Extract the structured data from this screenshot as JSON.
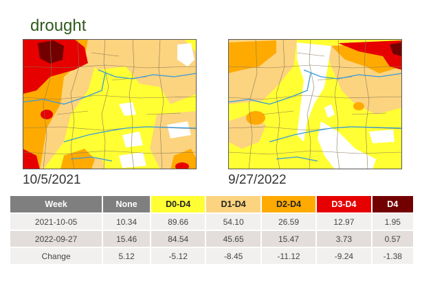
{
  "title": "drought",
  "maps": [
    {
      "date": "10/5/2021"
    },
    {
      "date": "9/27/2022"
    }
  ],
  "table": {
    "headers": [
      "Week",
      "None",
      "D0-D4",
      "D1-D4",
      "D2-D4",
      "D3-D4",
      "D4"
    ],
    "rows": [
      [
        "2021-10-05",
        "10.34",
        "89.66",
        "54.10",
        "26.59",
        "12.97",
        "1.95"
      ],
      [
        "2022-09-27",
        "15.46",
        "84.54",
        "45.65",
        "15.47",
        "3.73",
        "0.57"
      ],
      [
        "Change",
        "5.12",
        "-5.12",
        "-8.45",
        "-11.12",
        "-9.24",
        "-1.38"
      ]
    ]
  },
  "colors": {
    "none": "#ffffff",
    "d0": "#ffff33",
    "d1": "#fcd37f",
    "d2": "#ffaa00",
    "d3": "#e60000",
    "d4": "#730000",
    "header_gray": "#7f7f7f",
    "title_green": "#2f5a1c",
    "rivers": "#3399dd",
    "county_lines": "#8a7a55"
  }
}
